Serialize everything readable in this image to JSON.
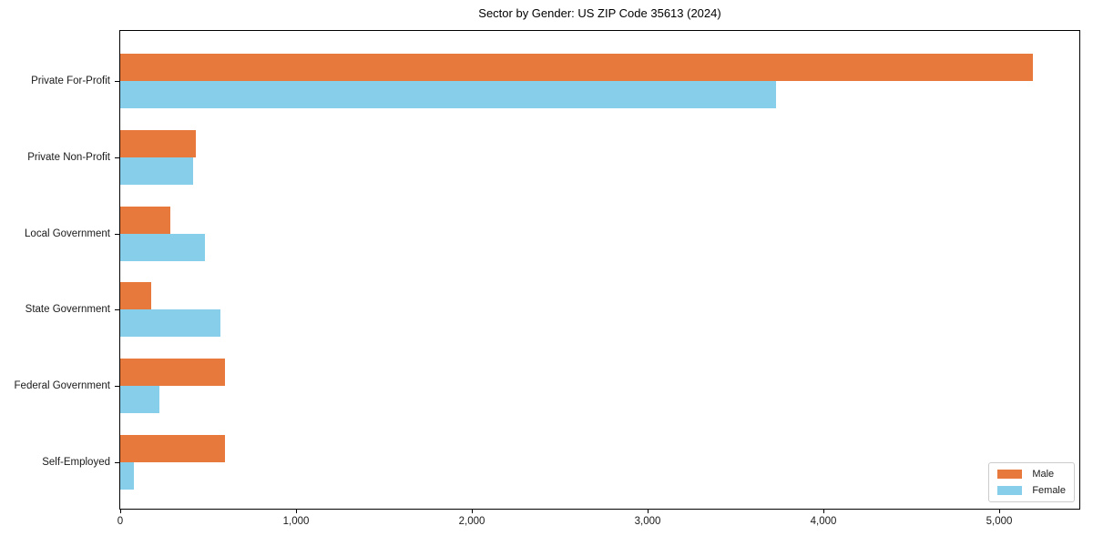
{
  "figure": {
    "background": "#ffffff",
    "axis_color": "#000000",
    "text_color": "#1a1a1a"
  },
  "chart_data": {
    "type": "bar",
    "orientation": "horizontal",
    "title": "Sector by Gender: US ZIP Code 35613 (2024)",
    "xlabel": "",
    "ylabel": "",
    "categories": [
      "Private For-Profit",
      "Private Non-Profit",
      "Local Government",
      "State Government",
      "Federal Government",
      "Self-Employed"
    ],
    "series": [
      {
        "name": "Male",
        "color": "#e8793d",
        "values": [
          5190,
          430,
          285,
          175,
          595,
          595
        ]
      },
      {
        "name": "Female",
        "color": "#87ceeb",
        "values": [
          3730,
          415,
          480,
          570,
          225,
          80
        ]
      }
    ],
    "xlim": [
      0,
      5455
    ],
    "xticks": [
      0,
      1000,
      2000,
      3000,
      4000,
      5000
    ],
    "xtick_labels": [
      "0",
      "1,000",
      "2,000",
      "3,000",
      "4,000",
      "5,000"
    ],
    "grid": false,
    "legend": {
      "position": "lower-right",
      "entries": [
        "Male",
        "Female"
      ]
    }
  }
}
